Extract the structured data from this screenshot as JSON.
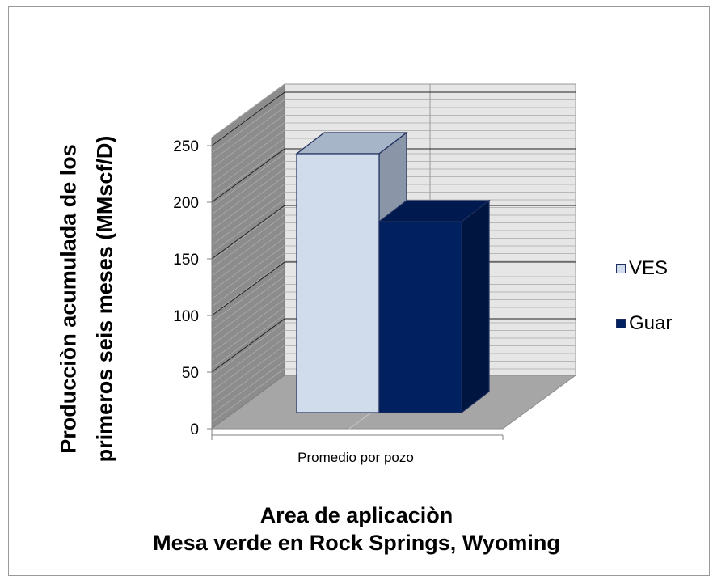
{
  "chart_data": {
    "type": "bar",
    "categories": [
      "Promedio por pozo"
    ],
    "series": [
      {
        "name": "VES",
        "values": [
          235
        ],
        "color": "#d0dceb"
      },
      {
        "name": "Guar",
        "values": [
          175
        ],
        "color": "#002060"
      }
    ],
    "ylim": [
      0,
      250
    ],
    "yticks": [
      "0",
      "50",
      "100",
      "150",
      "200",
      "250"
    ],
    "ylabel_line1": "Producciòn acumulada de los",
    "ylabel_line2": "primeros seis meses  (MMscf/D)",
    "xlabel_line1": "Area de aplicaciòn",
    "xlabel_line2": "Mesa verde en Rock Springs, Wyoming",
    "grid": true,
    "legend_position": "right",
    "three_d": true
  }
}
